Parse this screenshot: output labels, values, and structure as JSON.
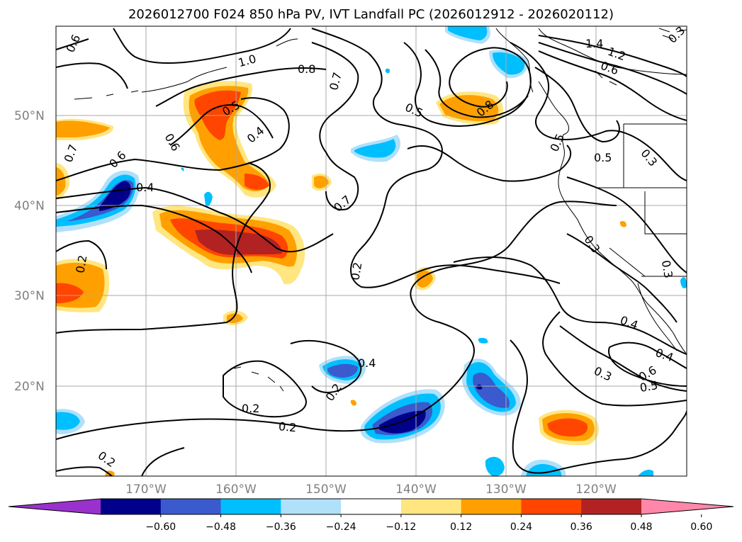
{
  "title": "2026012700 F024 850 hPa PV, IVT Landfall PC (2026012912 - 2026020112)",
  "latitude_labels": [
    "50°N",
    "40°N",
    "30°N",
    "20°N"
  ],
  "longitude_labels": [
    "170°W",
    "160°W",
    "150°W",
    "140°W",
    "130°W",
    "120°W"
  ],
  "contour_labels": {
    "c1": "0.6",
    "c2": "1.0",
    "c3": "0.8",
    "c4": "0.7",
    "c5": "0.5",
    "c6": "1.4",
    "c7": "1.2",
    "c8": "0.6",
    "c9": "0.8",
    "c10": "0.5",
    "c11": "0.4",
    "c12": "0.6",
    "c13": "0.5",
    "c14": "0.7",
    "c15": "0.6",
    "c16": "0.4",
    "c17": "0.7",
    "c18": "0.5",
    "c19": "0.3",
    "c20": "0.4",
    "c21": "0.2",
    "c22": "0.2",
    "c23": "0.3",
    "c24": "0.3",
    "c25": "0.4",
    "c26": "0.4",
    "c27": "0.2",
    "c28": "0.2",
    "c29": "0.2",
    "c30": "0.6",
    "c31": "0.5",
    "c32": "0.3",
    "c33": "0.2",
    "c34": "0.3"
  },
  "colorbar": {
    "tick_labels": [
      "−0.60",
      "−0.48",
      "−0.36",
      "−0.24",
      "−0.12",
      "0.12",
      "0.24",
      "0.36",
      "0.48",
      "0.60"
    ],
    "colors": [
      "#9932cc",
      "#00008b",
      "#3a5acd",
      "#00bfff",
      "#b0e0fa",
      "#ffffff",
      "#ffe680",
      "#ffa000",
      "#ff4500",
      "#b22222",
      "#ff88aa"
    ]
  }
}
